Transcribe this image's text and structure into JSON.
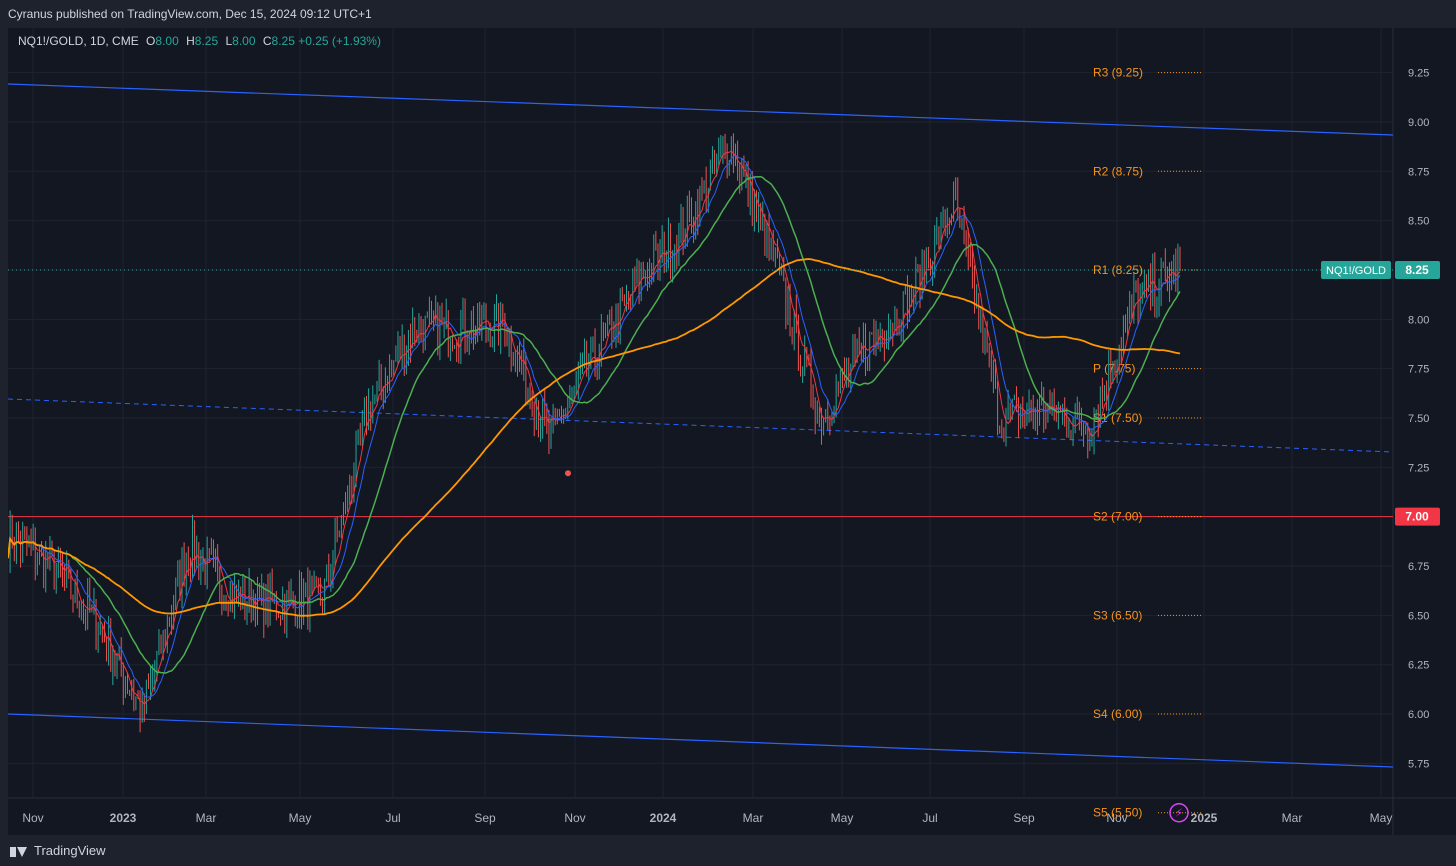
{
  "header": {
    "published": "Cyranus published on TradingView.com, Dec 15, 2024 09:12 UTC+1"
  },
  "legend": {
    "symbol": "NQ1!/GOLD, 1D, CME",
    "o_label": "O",
    "o_value": "8.00",
    "h_label": "H",
    "h_value": "8.25",
    "l_label": "L",
    "l_value": "8.00",
    "c_label": "C",
    "c_value": "8.25",
    "change": "+0.25 (+1.93%)"
  },
  "footer": {
    "brand": "TradingView"
  },
  "colors": {
    "background": "#131722",
    "up": "#26a69a",
    "down": "#ef5350",
    "ma_fast": "#f23645",
    "ma_mid": "#2962ff",
    "ma_slow": "#4caf50",
    "ma_long": "#ff9800",
    "channel": "#2962ff",
    "pivot": "#f7931a",
    "hline": "#f23645"
  },
  "chart_data": {
    "type": "line",
    "symbol": "NQ1!/GOLD",
    "ylim": [
      5.6,
      9.4
    ],
    "yticks": [
      "9.25",
      "9.00",
      "8.75",
      "8.50",
      "8.25",
      "8.00",
      "7.75",
      "7.50",
      "7.25",
      "7.00",
      "6.75",
      "6.50",
      "6.25",
      "6.00",
      "5.75"
    ],
    "xticks": [
      "Nov",
      "2023",
      "Mar",
      "May",
      "Jul",
      "Sep",
      "Nov",
      "2024",
      "Mar",
      "May",
      "Jul",
      "Sep",
      "Nov",
      "2025",
      "Mar",
      "May"
    ],
    "x": [
      "2022-10",
      "2022-11",
      "2022-12",
      "2023-01",
      "2023-02",
      "2023-03",
      "2023-04",
      "2023-05",
      "2023-06",
      "2023-07",
      "2023-08",
      "2023-09",
      "2023-10",
      "2023-11",
      "2023-12",
      "2024-01",
      "2024-02",
      "2024-03",
      "2024-04",
      "2024-05",
      "2024-06",
      "2024-07",
      "2024-08",
      "2024-09",
      "2024-10",
      "2024-11",
      "2024-12"
    ],
    "series": [
      {
        "name": "",
        "values": [
          6.9,
          6.75,
          6.45,
          6.0,
          6.85,
          6.6,
          6.55,
          6.6,
          7.55,
          7.95,
          7.95,
          7.98,
          7.4,
          7.8,
          8.2,
          8.45,
          8.9,
          8.3,
          7.5,
          7.85,
          8.1,
          8.6,
          7.5,
          7.55,
          7.45,
          8.1,
          8.25
        ]
      }
    ],
    "last_price": "8.25",
    "last_label": "NQ1!/GOLD",
    "horizontal_line": "7.00",
    "pivots": [
      {
        "label": "R3 (9.25)",
        "value": 9.25
      },
      {
        "label": "R2 (8.75)",
        "value": 8.75
      },
      {
        "label": "R1 (8.25)",
        "value": 8.25
      },
      {
        "label": "P (7.75)",
        "value": 7.75
      },
      {
        "label": "S1 (7.50)",
        "value": 7.5
      },
      {
        "label": "S2 (7.00)",
        "value": 7.0
      },
      {
        "label": "S3 (6.50)",
        "value": 6.5
      },
      {
        "label": "S4 (6.00)",
        "value": 6.0
      },
      {
        "label": "S5 (5.50)",
        "value": 5.5
      }
    ],
    "grid": true
  }
}
